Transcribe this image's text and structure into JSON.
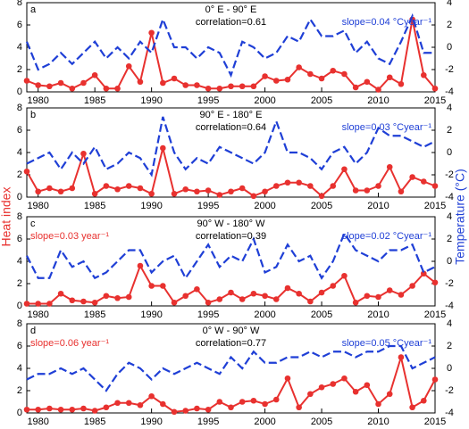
{
  "chart_data": [
    {
      "type": "line",
      "label": "a",
      "title": "0° E - 90° E",
      "annotations": [
        "correlation=0.61",
        "slope=0.04 °Cyear⁻¹"
      ],
      "x": [
        1979,
        1980,
        1981,
        1982,
        1983,
        1984,
        1985,
        1986,
        1987,
        1988,
        1989,
        1990,
        1991,
        1992,
        1993,
        1994,
        1995,
        1996,
        1997,
        1998,
        1999,
        2000,
        2001,
        2002,
        2003,
        2004,
        2005,
        2006,
        2007,
        2008,
        2009,
        2010,
        2011,
        2012,
        2013,
        2014,
        2015
      ],
      "xlim": [
        1979,
        2015
      ],
      "xticks": [
        1980,
        1985,
        1990,
        1995,
        2000,
        2005,
        2010,
        2015
      ],
      "ylim": [
        0,
        8
      ],
      "yticks": [
        0,
        2,
        4,
        6,
        8
      ],
      "y2lim": [
        -4,
        4
      ],
      "y2ticks": [
        -4,
        -2,
        0,
        2,
        4
      ],
      "series": [
        {
          "name": "Heat index",
          "color": "#e8312f",
          "values": [
            1.0,
            0.6,
            0.5,
            0.8,
            0.3,
            0.8,
            1.5,
            0.3,
            0.3,
            2.3,
            0.9,
            5.3,
            0.8,
            1.2,
            0.6,
            0.6,
            0.3,
            0.3,
            0.5,
            0.5,
            0.5,
            1.4,
            1.0,
            1.1,
            2.2,
            1.6,
            1.2,
            1.9,
            1.6,
            0.4,
            0.9,
            0.2,
            1.3,
            0.7,
            6.5,
            1.5,
            0.3
          ]
        },
        {
          "name": "Temperature",
          "color": "#1f3fd6",
          "axis": "y2",
          "values": [
            0.5,
            -2.0,
            -1.5,
            -0.5,
            -1.5,
            -0.5,
            0.5,
            -1.0,
            0,
            -1.0,
            0.5,
            -0.5,
            2.5,
            0,
            0,
            -1.0,
            0,
            -0.5,
            -2.5,
            0.5,
            0,
            -1.0,
            -0.5,
            1.0,
            0.5,
            2.5,
            1.0,
            1.0,
            1.5,
            -0.5,
            0.5,
            -1.0,
            -1.5,
            0.5,
            2.8,
            -0.5,
            -0.5
          ]
        }
      ]
    },
    {
      "type": "line",
      "label": "b",
      "title": "90° E - 180° E",
      "annotations": [
        "correlation=0.64",
        "slope=0.03 °Cyear⁻¹"
      ],
      "ylabel": "Heat index",
      "y2label": "Temperature (°C)",
      "x": [
        1979,
        1980,
        1981,
        1982,
        1983,
        1984,
        1985,
        1986,
        1987,
        1988,
        1989,
        1990,
        1991,
        1992,
        1993,
        1994,
        1995,
        1996,
        1997,
        1998,
        1999,
        2000,
        2001,
        2002,
        2003,
        2004,
        2005,
        2006,
        2007,
        2008,
        2009,
        2010,
        2011,
        2012,
        2013,
        2014,
        2015
      ],
      "xlim": [
        1979,
        2015
      ],
      "xticks": [
        1980,
        1985,
        1990,
        1995,
        2000,
        2005,
        2010,
        2015
      ],
      "ylim": [
        0,
        8
      ],
      "yticks": [
        0,
        2,
        4,
        6,
        8
      ],
      "y2lim": [
        -4,
        4
      ],
      "y2ticks": [
        -4,
        -2,
        0,
        2,
        4
      ],
      "series": [
        {
          "name": "Heat index",
          "color": "#e8312f",
          "values": [
            2.3,
            0.5,
            0.8,
            0.5,
            0.8,
            3.9,
            0.3,
            1.0,
            0.7,
            1.0,
            0.8,
            0.3,
            4.4,
            0.3,
            0.7,
            0.5,
            0.6,
            0.2,
            0.5,
            0.8,
            0.1,
            0.5,
            1.0,
            1.3,
            1.3,
            1.0,
            0.1,
            1.0,
            2.5,
            0.6,
            0.6,
            1.0,
            2.7,
            0.5,
            1.8,
            1.4,
            1.0
          ]
        },
        {
          "name": "Temperature",
          "color": "#1f3fd6",
          "axis": "y2",
          "values": [
            -1.0,
            -0.5,
            0,
            -1.5,
            0,
            -1.0,
            0.5,
            -1.5,
            -1.0,
            0,
            -0.5,
            -2.0,
            3.2,
            0,
            -1.5,
            -0.5,
            -1.0,
            0.5,
            0,
            -0.5,
            -1.0,
            0,
            2.8,
            0,
            0,
            -0.5,
            -1.5,
            0,
            0.5,
            -1.0,
            0,
            2.2,
            1.5,
            1.5,
            1.0,
            0.5,
            1.0
          ]
        }
      ]
    },
    {
      "type": "line",
      "label": "c",
      "title": "90° W - 180° W",
      "annotations": [
        "correlation=0.39",
        "slope=0.02 °Cyear⁻¹",
        "slope=0.03 year⁻¹"
      ],
      "x": [
        1979,
        1980,
        1981,
        1982,
        1983,
        1984,
        1985,
        1986,
        1987,
        1988,
        1989,
        1990,
        1991,
        1992,
        1993,
        1994,
        1995,
        1996,
        1997,
        1998,
        1999,
        2000,
        2001,
        2002,
        2003,
        2004,
        2005,
        2006,
        2007,
        2008,
        2009,
        2010,
        2011,
        2012,
        2013,
        2014,
        2015
      ],
      "xlim": [
        1979,
        2015
      ],
      "xticks": [
        1980,
        1985,
        1990,
        1995,
        2000,
        2005,
        2010,
        2015
      ],
      "ylim": [
        0,
        8
      ],
      "yticks": [
        0,
        2,
        4,
        6,
        8
      ],
      "y2lim": [
        -4,
        4
      ],
      "y2ticks": [
        -4,
        -2,
        0,
        2,
        4
      ],
      "series": [
        {
          "name": "Heat index",
          "color": "#e8312f",
          "values": [
            0.2,
            0.2,
            0.2,
            1.1,
            0.5,
            0.4,
            0.3,
            0.9,
            0.7,
            0.8,
            3.6,
            1.8,
            1.8,
            0.3,
            0.9,
            1.5,
            0.3,
            0.6,
            1.2,
            0.6,
            1.1,
            0.9,
            0.6,
            1.6,
            1.1,
            0.4,
            1.2,
            1.8,
            2.7,
            0.3,
            0.9,
            0.8,
            1.4,
            1.0,
            1.8,
            2.9,
            2.1
          ]
        },
        {
          "name": "Temperature",
          "color": "#1f3fd6",
          "axis": "y2",
          "values": [
            0.5,
            -1.5,
            -1.5,
            1.0,
            -0.5,
            0,
            -1.5,
            -1.0,
            0,
            1.0,
            1.0,
            -1.0,
            0,
            0.5,
            -1.5,
            0,
            1.5,
            -0.5,
            0.5,
            0,
            2.0,
            -1.0,
            -0.5,
            1.5,
            0,
            0.5,
            -1.5,
            0,
            2.5,
            1.0,
            0.5,
            0,
            1.0,
            1.0,
            1.5,
            -1.0,
            -0.5
          ]
        }
      ]
    },
    {
      "type": "line",
      "label": "d",
      "title": "0° W - 90° W",
      "annotations": [
        "correlation=0.77",
        "slope=0.05 °Cyear⁻¹",
        "slope=0.06 year⁻¹"
      ],
      "x": [
        1979,
        1980,
        1981,
        1982,
        1983,
        1984,
        1985,
        1986,
        1987,
        1988,
        1989,
        1990,
        1991,
        1992,
        1993,
        1994,
        1995,
        1996,
        1997,
        1998,
        1999,
        2000,
        2001,
        2002,
        2003,
        2004,
        2005,
        2006,
        2007,
        2008,
        2009,
        2010,
        2011,
        2012,
        2013,
        2014,
        2015
      ],
      "xlim": [
        1979,
        2015
      ],
      "xticks": [
        1980,
        1985,
        1990,
        1995,
        2000,
        2005,
        2010,
        2015
      ],
      "ylim": [
        0,
        8
      ],
      "yticks": [
        0,
        2,
        4,
        6,
        8
      ],
      "y2lim": [
        -4,
        4
      ],
      "y2ticks": [
        -4,
        -2,
        0,
        2,
        4
      ],
      "series": [
        {
          "name": "Heat index",
          "color": "#e8312f",
          "values": [
            0.3,
            0.3,
            0.4,
            0.3,
            0.3,
            0.4,
            0.2,
            0.5,
            0.9,
            0.9,
            0.7,
            1.5,
            0.8,
            0.1,
            0.2,
            0.4,
            0.3,
            1.0,
            0.5,
            1.0,
            1.1,
            0.8,
            1.2,
            3.1,
            0.5,
            1.7,
            2.3,
            2.6,
            3.1,
            1.9,
            2.5,
            0.8,
            1.7,
            5.0,
            0.5,
            1.1,
            3.0
          ]
        },
        {
          "name": "Temperature",
          "color": "#1f3fd6",
          "axis": "y2",
          "values": [
            -1.0,
            -0.5,
            -0.5,
            0,
            -0.5,
            0,
            -1.0,
            -2.0,
            -0.5,
            0.5,
            0,
            -1.0,
            0,
            -0.5,
            0,
            0.5,
            0,
            -0.5,
            1.0,
            0,
            1.5,
            0.5,
            0.5,
            1.0,
            1.0,
            1.5,
            1.0,
            1.5,
            1.5,
            1.0,
            1.5,
            1.5,
            2.0,
            2.0,
            0,
            0.5,
            1.0
          ]
        }
      ]
    }
  ]
}
